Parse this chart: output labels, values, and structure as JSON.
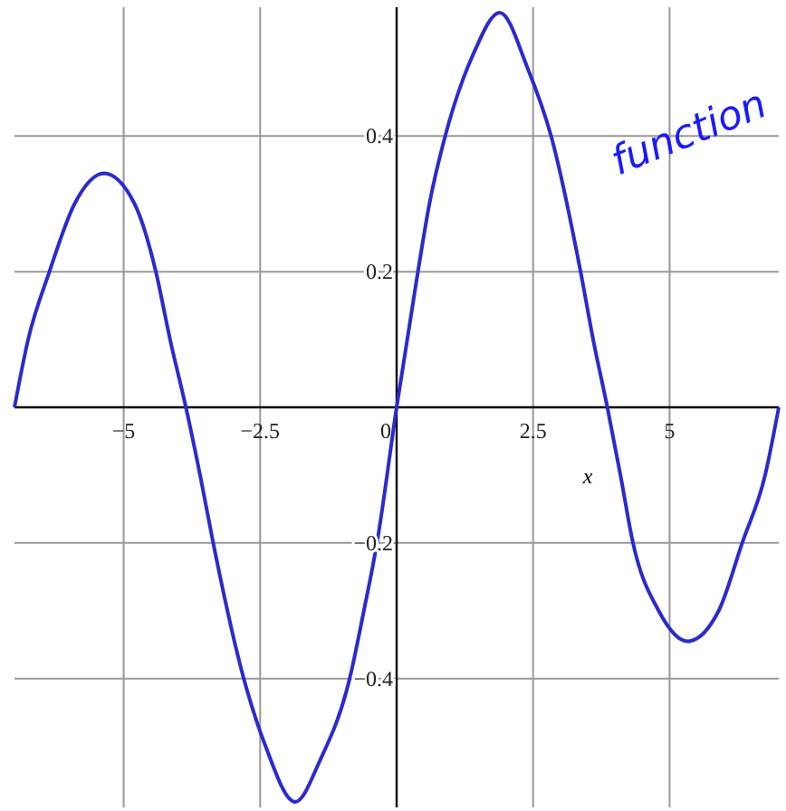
{
  "chart_data": {
    "type": "line",
    "xlabel": "x",
    "annotations": [
      "function"
    ],
    "x": [
      -7,
      -6.75,
      -6.36,
      -5.9,
      -5.36,
      -4.8,
      -4.41,
      -4.15,
      -3.86,
      -3.6,
      -3.36,
      -2.8,
      -2.4,
      -1.86,
      -1.4,
      -0.86,
      -0.6,
      -0.36,
      0,
      0.39,
      0.6,
      0.89,
      1.4,
      1.89,
      2.4,
      2.83,
      3.37,
      3.6,
      3.86,
      4.1,
      4.33,
      4.8,
      5.33,
      5.9,
      6.33,
      6.75,
      7
    ],
    "series": [
      {
        "color": "#2a2ad0",
        "values": [
          0,
          0.1,
          0.2,
          0.3,
          0.345,
          0.3,
          0.2,
          0.1,
          0,
          -0.1,
          -0.2,
          -0.4,
          -0.5,
          -0.582,
          -0.52,
          -0.4,
          -0.3,
          -0.2,
          0,
          0.2,
          0.3,
          0.4,
          0.52,
          0.582,
          0.5,
          0.4,
          0.2,
          0.1,
          0,
          -0.1,
          -0.2,
          -0.3,
          -0.345,
          -0.3,
          -0.2,
          -0.1,
          0
        ]
      }
    ],
    "xlim": [
      -7,
      7
    ],
    "ylim": [
      -0.59,
      0.59
    ],
    "xticks": [
      -5,
      -2.5,
      0,
      2.5,
      5
    ],
    "yticks": [
      -0.4,
      -0.2,
      0.2,
      0.4
    ],
    "grid": true,
    "line_style": "solid",
    "marker": "none"
  }
}
